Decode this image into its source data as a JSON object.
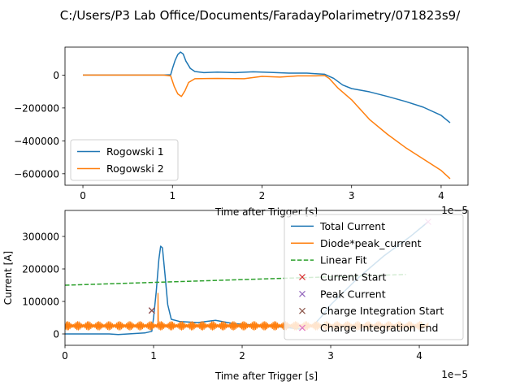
{
  "figure": {
    "suptitle": "C:/Users/P3 Lab Office/Documents/FaradayPolarimetry/071823s9/"
  },
  "colors": {
    "blue": "#1f77b4",
    "orange": "#ff7f0e",
    "green": "#2ca02c",
    "red": "#d62728",
    "purple": "#9467bd",
    "brown": "#8c564b",
    "pink": "#e377c2"
  },
  "chart_data": [
    {
      "type": "line",
      "xlabel": "Time after Trigger [s]",
      "ylabel": "",
      "x_offset_text": "1e−5",
      "xlim": [
        -0.2,
        4.3
      ],
      "ylim": [
        -670000,
        170000
      ],
      "x_ticks": [
        0,
        1,
        2,
        3,
        4
      ],
      "x_tick_labels": [
        "0",
        "1",
        "2",
        "3",
        "4"
      ],
      "y_ticks": [
        0,
        -200000,
        -400000,
        -600000
      ],
      "y_tick_labels": [
        "0",
        "−200000",
        "−400000",
        "−600000"
      ],
      "legend_position": "lower left",
      "series": [
        {
          "name": "Rogowski 1",
          "color": "blue",
          "points": [
            [
              0,
              0
            ],
            [
              0.9,
              0
            ],
            [
              0.98,
              2000
            ],
            [
              1.0,
              40000
            ],
            [
              1.03,
              90000
            ],
            [
              1.06,
              125000
            ],
            [
              1.09,
              140000
            ],
            [
              1.12,
              128000
            ],
            [
              1.15,
              85000
            ],
            [
              1.2,
              40000
            ],
            [
              1.25,
              22000
            ],
            [
              1.35,
              15000
            ],
            [
              1.5,
              18000
            ],
            [
              1.7,
              15000
            ],
            [
              1.9,
              20000
            ],
            [
              2.1,
              16000
            ],
            [
              2.3,
              12000
            ],
            [
              2.5,
              12000
            ],
            [
              2.6,
              8000
            ],
            [
              2.7,
              5000
            ],
            [
              2.8,
              -20000
            ],
            [
              2.9,
              -60000
            ],
            [
              3.0,
              -82000
            ],
            [
              3.2,
              -102000
            ],
            [
              3.4,
              -130000
            ],
            [
              3.6,
              -160000
            ],
            [
              3.8,
              -195000
            ],
            [
              4.0,
              -245000
            ],
            [
              4.1,
              -290000
            ]
          ]
        },
        {
          "name": "Rogowski 2",
          "color": "orange",
          "points": [
            [
              0,
              0
            ],
            [
              0.9,
              0
            ],
            [
              0.98,
              -5000
            ],
            [
              1.02,
              -70000
            ],
            [
              1.06,
              -115000
            ],
            [
              1.1,
              -130000
            ],
            [
              1.14,
              -95000
            ],
            [
              1.18,
              -45000
            ],
            [
              1.25,
              -22000
            ],
            [
              1.5,
              -20000
            ],
            [
              1.8,
              -22000
            ],
            [
              2.0,
              -8000
            ],
            [
              2.2,
              -12000
            ],
            [
              2.4,
              -5000
            ],
            [
              2.6,
              -5000
            ],
            [
              2.7,
              -3000
            ],
            [
              2.75,
              -20000
            ],
            [
              2.85,
              -80000
            ],
            [
              3.0,
              -150000
            ],
            [
              3.2,
              -270000
            ],
            [
              3.4,
              -360000
            ],
            [
              3.6,
              -440000
            ],
            [
              3.8,
              -510000
            ],
            [
              4.0,
              -580000
            ],
            [
              4.1,
              -630000
            ]
          ]
        }
      ]
    },
    {
      "type": "line",
      "xlabel": "Time after Trigger [s]",
      "ylabel": "Current [A]",
      "x_offset_text": "1e−5",
      "xlim": [
        0,
        4.55
      ],
      "ylim": [
        -35000,
        380000
      ],
      "x_ticks": [
        0,
        1,
        2,
        3,
        4
      ],
      "x_tick_labels": [
        "0",
        "1",
        "2",
        "3",
        "4"
      ],
      "y_ticks": [
        0,
        100000,
        200000,
        300000
      ],
      "y_tick_labels": [
        "0",
        "100000",
        "200000",
        "300000"
      ],
      "legend_position": "upper right",
      "series": [
        {
          "name": "Total Current",
          "color": "blue",
          "points": [
            [
              0,
              0
            ],
            [
              0.5,
              0
            ],
            [
              0.6,
              -2000
            ],
            [
              0.9,
              3000
            ],
            [
              0.98,
              8000
            ],
            [
              1.0,
              50000
            ],
            [
              1.03,
              130000
            ],
            [
              1.06,
              230000
            ],
            [
              1.08,
              270000
            ],
            [
              1.1,
              265000
            ],
            [
              1.13,
              180000
            ],
            [
              1.16,
              90000
            ],
            [
              1.2,
              45000
            ],
            [
              1.3,
              38000
            ],
            [
              1.5,
              35000
            ],
            [
              1.7,
              42000
            ],
            [
              1.9,
              32000
            ],
            [
              2.1,
              28000
            ],
            [
              2.3,
              25000
            ],
            [
              2.5,
              20000
            ],
            [
              2.65,
              15000
            ],
            [
              2.8,
              25000
            ],
            [
              2.9,
              55000
            ],
            [
              3.0,
              90000
            ],
            [
              3.3,
              170000
            ],
            [
              3.6,
              240000
            ],
            [
              3.9,
              300000
            ],
            [
              4.1,
              345000
            ]
          ]
        },
        {
          "name": "Diode*peak_current",
          "color": "orange",
          "noise_range": [
            0,
            4.1
          ],
          "noise_center": 25000,
          "noise_amplitude": 13000,
          "spike": {
            "x": 1.05,
            "y": 125000
          }
        },
        {
          "name": "Linear Fit",
          "color": "green",
          "dashed": true,
          "points": [
            [
              0,
              150000
            ],
            [
              3.85,
              183000
            ]
          ]
        }
      ],
      "markers": [
        {
          "name": "Current Start",
          "color": "red",
          "x": 0.98,
          "y": 72000
        },
        {
          "name": "Peak Current",
          "color": "purple",
          "x": 0.98,
          "y": 72000
        },
        {
          "name": "Charge Integration Start",
          "color": "brown",
          "x": 0.98,
          "y": 72000
        },
        {
          "name": "Charge Integration End",
          "color": "pink",
          "x": 4.1,
          "y": 345000
        }
      ]
    }
  ]
}
